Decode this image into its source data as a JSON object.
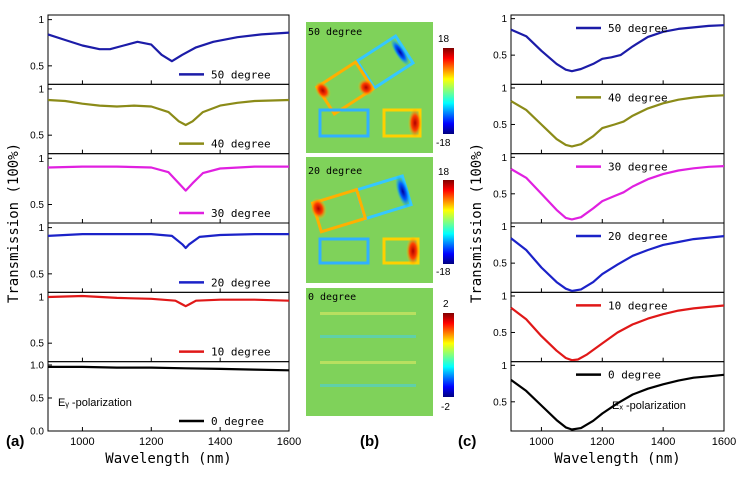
{
  "panel_letters": {
    "a": "(a)",
    "b": "(b)",
    "c": "(c)"
  },
  "colors": {
    "50 degree": "#1c1ca8",
    "40 degree": "#8b8b18",
    "30 degree": "#e020e0",
    "20 degree": "#1b22c8",
    "10 degree": "#e01818",
    "0 degree": "#000000"
  },
  "chart_data": [
    {
      "type": "line",
      "panel": "(a)",
      "xlabel": "Wavelength (nm)",
      "ylabel": "Transmission (100%)",
      "xlim": [
        900,
        1600
      ],
      "xticks": [
        "1000",
        "1200",
        "1400",
        "1600"
      ],
      "annotation": "Eᵧ -polarization",
      "grid": false,
      "legend_position": "bottom-right of each subplot",
      "subplots": [
        {
          "name": "50 degree",
          "ylim": [
            0.3,
            1.05
          ],
          "yticks": [
            "1",
            "0.5"
          ],
          "x": [
            900,
            950,
            1000,
            1050,
            1080,
            1120,
            1160,
            1200,
            1230,
            1260,
            1290,
            1330,
            1380,
            1450,
            1520,
            1600
          ],
          "y": [
            0.84,
            0.78,
            0.72,
            0.68,
            0.68,
            0.72,
            0.76,
            0.73,
            0.62,
            0.55,
            0.62,
            0.7,
            0.76,
            0.81,
            0.84,
            0.86
          ]
        },
        {
          "name": "40 degree",
          "ylim": [
            0.3,
            1.05
          ],
          "yticks": [
            "1",
            "0.5"
          ],
          "x": [
            900,
            950,
            1000,
            1050,
            1100,
            1150,
            1200,
            1250,
            1280,
            1300,
            1320,
            1350,
            1400,
            1450,
            1500,
            1600
          ],
          "y": [
            0.88,
            0.87,
            0.84,
            0.82,
            0.81,
            0.82,
            0.81,
            0.75,
            0.65,
            0.61,
            0.65,
            0.75,
            0.82,
            0.85,
            0.87,
            0.88
          ]
        },
        {
          "name": "30 degree",
          "ylim": [
            0.3,
            1.05
          ],
          "yticks": [
            "1",
            "0.5"
          ],
          "x": [
            900,
            1000,
            1100,
            1200,
            1250,
            1280,
            1300,
            1320,
            1350,
            1400,
            1500,
            1600
          ],
          "y": [
            0.9,
            0.91,
            0.91,
            0.9,
            0.85,
            0.73,
            0.65,
            0.73,
            0.84,
            0.89,
            0.91,
            0.91
          ]
        },
        {
          "name": "20 degree",
          "ylim": [
            0.3,
            1.05
          ],
          "yticks": [
            "1",
            "0.5"
          ],
          "x": [
            900,
            1000,
            1100,
            1200,
            1260,
            1290,
            1300,
            1310,
            1340,
            1400,
            1500,
            1600
          ],
          "y": [
            0.91,
            0.93,
            0.93,
            0.93,
            0.91,
            0.82,
            0.78,
            0.82,
            0.9,
            0.92,
            0.93,
            0.93
          ]
        },
        {
          "name": "10 degree",
          "ylim": [
            0.3,
            1.05
          ],
          "yticks": [
            "1",
            "0.5"
          ],
          "x": [
            900,
            1000,
            1100,
            1200,
            1270,
            1290,
            1300,
            1310,
            1330,
            1400,
            1500,
            1600
          ],
          "y": [
            1.0,
            1.01,
            0.99,
            0.98,
            0.96,
            0.92,
            0.9,
            0.92,
            0.96,
            0.97,
            0.97,
            0.96
          ]
        },
        {
          "name": "0 degree",
          "ylim": [
            0,
            1.05
          ],
          "yticks": [
            "1.0",
            "0.5",
            "0.0"
          ],
          "x": [
            900,
            1000,
            1100,
            1200,
            1300,
            1400,
            1500,
            1600
          ],
          "y": [
            0.97,
            0.97,
            0.96,
            0.96,
            0.95,
            0.94,
            0.93,
            0.92
          ]
        }
      ]
    },
    {
      "type": "heatmap",
      "panel": "(b)",
      "maps": [
        {
          "label": "50 degree",
          "colorbar": [
            "18",
            "-18"
          ]
        },
        {
          "label": "20 degree",
          "colorbar": [
            "18",
            "-18"
          ]
        },
        {
          "label": "0 degree",
          "colorbar": [
            "2",
            "-2"
          ]
        }
      ]
    },
    {
      "type": "line",
      "panel": "(c)",
      "xlabel": "Wavelength (nm)",
      "ylabel": "Transmission (100%)",
      "xlim": [
        900,
        1600
      ],
      "xticks": [
        "1000",
        "1200",
        "1400",
        "1600"
      ],
      "annotation": "Eₓ -polarization",
      "grid": false,
      "legend_position": "top-right of each subplot",
      "subplots": [
        {
          "name": "50 degree",
          "ylim": [
            0.1,
            1.05
          ],
          "yticks": [
            "1",
            "0.5"
          ],
          "x": [
            900,
            950,
            1000,
            1050,
            1080,
            1100,
            1130,
            1170,
            1200,
            1230,
            1260,
            1300,
            1350,
            1400,
            1450,
            1500,
            1550,
            1600
          ],
          "y": [
            0.85,
            0.76,
            0.56,
            0.38,
            0.3,
            0.28,
            0.31,
            0.38,
            0.45,
            0.47,
            0.5,
            0.62,
            0.75,
            0.82,
            0.86,
            0.88,
            0.9,
            0.91
          ]
        },
        {
          "name": "40 degree",
          "ylim": [
            0.1,
            1.05
          ],
          "yticks": [
            "1",
            "0.5"
          ],
          "x": [
            900,
            950,
            1000,
            1050,
            1080,
            1100,
            1130,
            1170,
            1200,
            1240,
            1270,
            1300,
            1350,
            1400,
            1450,
            1500,
            1550,
            1600
          ],
          "y": [
            0.82,
            0.7,
            0.5,
            0.3,
            0.22,
            0.2,
            0.23,
            0.34,
            0.45,
            0.5,
            0.54,
            0.62,
            0.72,
            0.79,
            0.84,
            0.87,
            0.89,
            0.9
          ]
        },
        {
          "name": "30 degree",
          "ylim": [
            0.1,
            1.05
          ],
          "yticks": [
            "1",
            "0.5"
          ],
          "x": [
            900,
            950,
            1000,
            1050,
            1080,
            1100,
            1130,
            1170,
            1200,
            1240,
            1270,
            1300,
            1350,
            1400,
            1450,
            1500,
            1550,
            1600
          ],
          "y": [
            0.84,
            0.72,
            0.5,
            0.28,
            0.17,
            0.15,
            0.18,
            0.3,
            0.4,
            0.47,
            0.52,
            0.6,
            0.7,
            0.77,
            0.82,
            0.85,
            0.87,
            0.88
          ]
        },
        {
          "name": "20 degree",
          "ylim": [
            0.1,
            1.05
          ],
          "yticks": [
            "1",
            "0.5"
          ],
          "x": [
            900,
            950,
            1000,
            1050,
            1080,
            1100,
            1130,
            1170,
            1200,
            1250,
            1300,
            1350,
            1400,
            1450,
            1500,
            1550,
            1600
          ],
          "y": [
            0.84,
            0.68,
            0.44,
            0.24,
            0.15,
            0.12,
            0.14,
            0.24,
            0.35,
            0.48,
            0.6,
            0.68,
            0.75,
            0.79,
            0.83,
            0.85,
            0.87
          ]
        },
        {
          "name": "10 degree",
          "ylim": [
            0.1,
            1.05
          ],
          "yticks": [
            "1",
            "0.5"
          ],
          "x": [
            900,
            950,
            1000,
            1050,
            1080,
            1100,
            1120,
            1150,
            1200,
            1250,
            1300,
            1350,
            1400,
            1450,
            1500,
            1550,
            1600
          ],
          "y": [
            0.84,
            0.68,
            0.45,
            0.25,
            0.15,
            0.12,
            0.13,
            0.2,
            0.35,
            0.5,
            0.61,
            0.69,
            0.75,
            0.8,
            0.83,
            0.85,
            0.87
          ]
        },
        {
          "name": "0 degree",
          "ylim": [
            0.1,
            1.05
          ],
          "yticks": [
            "1",
            "0.5"
          ],
          "x": [
            900,
            950,
            1000,
            1050,
            1080,
            1100,
            1130,
            1170,
            1200,
            1250,
            1300,
            1350,
            1400,
            1450,
            1500,
            1550,
            1600
          ],
          "y": [
            0.8,
            0.65,
            0.45,
            0.25,
            0.15,
            0.12,
            0.14,
            0.24,
            0.34,
            0.48,
            0.6,
            0.68,
            0.74,
            0.79,
            0.83,
            0.85,
            0.87
          ]
        }
      ]
    }
  ]
}
